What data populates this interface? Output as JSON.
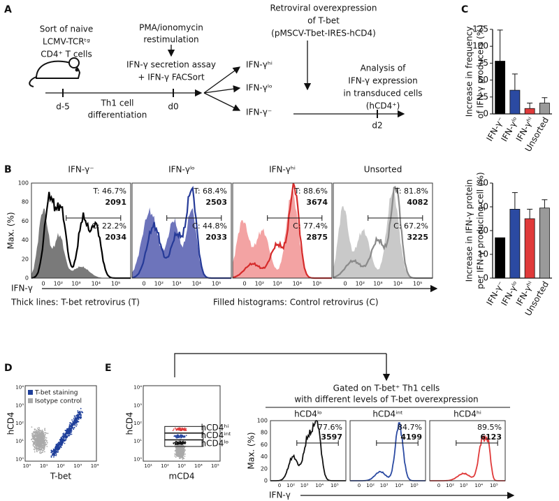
{
  "panel_labels": [
    "A",
    "B",
    "C",
    "D",
    "E"
  ],
  "panel_a": {
    "sort": [
      "Sort of naive",
      "LCMV-TCRᵗᵍ",
      "CD4⁺ T cells"
    ],
    "restim": [
      "PMA/ionomycin",
      "restimulation"
    ],
    "assay": [
      "IFN-γ secretion assay",
      "+ IFN-γ FACSort"
    ],
    "timeline": {
      "start": "d-5",
      "middle": [
        "Th1 cell",
        "differentiation"
      ],
      "sort_day": "d0",
      "end": "d2"
    },
    "fractions": [
      "IFN-γʰⁱ",
      "IFN-γˡᵒ",
      "IFN-γ⁻"
    ],
    "overexpression": [
      "Retroviral overexpression",
      "of T-bet",
      "(pMSCV-Tbet-IRES-hCD4)"
    ],
    "analysis": [
      "Analysis of",
      "IFN-γ expression",
      "in transduced cells",
      "(hCD4⁺)"
    ]
  },
  "panel_b": {
    "y_label": "Max. (%)",
    "yticks": [
      0,
      20,
      40,
      60,
      80,
      100
    ],
    "x_ticks": [
      "0",
      "10²",
      "10³",
      "10⁴",
      "10⁵"
    ],
    "x_label": "IFN-γ",
    "histograms": [
      {
        "title": "IFN-γ⁻",
        "t_pct": "T: 46.7%",
        "t_mfi": "2091",
        "c_pct": "C: 22.2%",
        "c_mfi": "2034"
      },
      {
        "title": "IFN-γˡᵒ",
        "t_pct": "T: 68.4%",
        "t_mfi": "2503",
        "c_pct": "C: 44.8%",
        "c_mfi": "2033"
      },
      {
        "title": "IFN-γʰⁱ",
        "t_pct": "T: 88.6%",
        "t_mfi": "3674",
        "c_pct": "C: 77.4%",
        "c_mfi": "2875"
      },
      {
        "title": "Unsorted",
        "t_pct": "T: 81.8%",
        "t_mfi": "4082",
        "c_pct": "C: 67.2%",
        "c_mfi": "3225"
      }
    ],
    "legend": [
      "Thick lines: T-bet retrovirus (T)",
      "Filled histograms: Control retrovirus (C)"
    ]
  },
  "chart_data": [
    {
      "type": "bar",
      "y_label": [
        "Increase in frequency",
        "of IFN-γ producers (%)"
      ],
      "categories": [
        "IFN-γ⁻",
        "IFN-γˡᵒ",
        "IFN-γʰⁱ",
        "Unsorted"
      ],
      "values": [
        78,
        35,
        8,
        16
      ],
      "errors": [
        46,
        24,
        8,
        8
      ],
      "colors": [
        "#000000",
        "#2b4aa2",
        "#e03a3a",
        "#9a9a9a"
      ],
      "ylim": [
        0,
        125
      ],
      "yticks": [
        0,
        25,
        50,
        75,
        100,
        125
      ]
    },
    {
      "type": "bar",
      "y_label": [
        "Increase in IFN-γ protein",
        "per IFN-γ producing cell (%)"
      ],
      "categories": [
        "IFN-γ⁻",
        "IFN-γˡᵒ",
        "IFN-γʰⁱ",
        "Unsorted"
      ],
      "values": [
        17,
        29,
        25,
        29.5
      ],
      "errors": [
        0,
        7,
        4,
        3.5
      ],
      "colors": [
        "#000000",
        "#2b4aa2",
        "#e03a3a",
        "#9a9a9a"
      ],
      "ylim": [
        0,
        40
      ],
      "yticks": [
        0,
        10,
        20,
        30,
        40
      ]
    }
  ],
  "panel_d": {
    "y_label": "hCD4",
    "x_label": "T-bet",
    "yticks": [
      "10⁰",
      "10¹",
      "10²",
      "10³",
      "10⁴"
    ],
    "xticks": [
      "10⁰",
      "10¹",
      "10²",
      "10³",
      "10⁴"
    ],
    "legend": [
      "T-bet staining",
      "Isotype control"
    ]
  },
  "panel_e": {
    "scatter": {
      "y_label": "hCD4",
      "x_label": "mCD4",
      "yticks": [
        "10⁰",
        "10¹",
        "10²",
        "10³",
        "10⁴"
      ],
      "xticks": [
        "10¹",
        "10²",
        "10³",
        "10⁴",
        "10⁵"
      ],
      "gates": [
        "hCD4ʰⁱ",
        "hCD4ⁱⁿᵗ",
        "hCD4ˡᵒ"
      ]
    },
    "header": [
      "Gated on T-bet⁺ Th1 cells",
      "with different levels of T-bet overexpression"
    ],
    "y_label": "Max. (%)",
    "yticks": [
      0,
      20,
      40,
      60,
      80,
      100
    ],
    "x_ticks": [
      "0",
      "10²",
      "10³",
      "10⁴",
      "10⁵"
    ],
    "x_label": "IFN-γ",
    "histograms": [
      {
        "title": "hCD4ˡᵒ",
        "pct": "77.6%",
        "mfi": "3597"
      },
      {
        "title": "hCD4ⁱⁿᵗ",
        "pct": "84.7%",
        "mfi": "4199"
      },
      {
        "title": "hCD4ʰⁱ",
        "pct": "89.5%",
        "mfi": "6123"
      }
    ]
  }
}
